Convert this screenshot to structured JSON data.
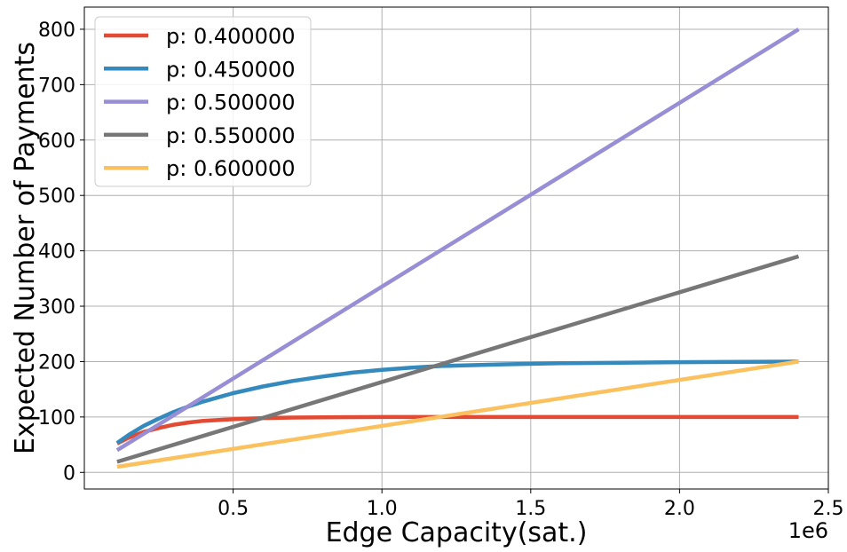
{
  "chart_data": {
    "type": "line",
    "xlabel": "Edge Capacity(sat.)",
    "ylabel": "Expected Number of Payments",
    "x_offset_label": "1e6",
    "xlim": [
      0.0,
      2.5
    ],
    "ylim": [
      -30,
      840
    ],
    "xticks": [
      0.5,
      1.0,
      1.5,
      2.0,
      2.5
    ],
    "xtick_labels": [
      "0.5",
      "1.0",
      "1.5",
      "2.0",
      "2.5"
    ],
    "yticks": [
      0,
      100,
      200,
      300,
      400,
      500,
      600,
      700,
      800
    ],
    "ytick_labels": [
      "0",
      "100",
      "200",
      "300",
      "400",
      "500",
      "600",
      "700",
      "800"
    ],
    "grid": true,
    "legend_position": "top-left",
    "series": [
      {
        "name": "p: 0.400000",
        "color": "#e24a33",
        "x": [
          0.11,
          0.15,
          0.2,
          0.25,
          0.3,
          0.35,
          0.4,
          0.5,
          0.6,
          0.7,
          0.8,
          1.0,
          1.2,
          1.5,
          2.0,
          2.4
        ],
        "y": [
          52,
          63,
          73,
          80,
          86,
          90,
          93,
          96,
          98,
          99,
          99.5,
          100,
          100,
          100,
          100,
          100
        ]
      },
      {
        "name": "p: 0.450000",
        "color": "#348abd",
        "x": [
          0.11,
          0.15,
          0.2,
          0.25,
          0.3,
          0.35,
          0.4,
          0.5,
          0.6,
          0.7,
          0.8,
          0.9,
          1.0,
          1.1,
          1.2,
          1.4,
          1.6,
          1.8,
          2.0,
          2.2,
          2.4
        ],
        "y": [
          53,
          68,
          84,
          97,
          109,
          119,
          128,
          143,
          155,
          165,
          173,
          180,
          185,
          189,
          192,
          195,
          197,
          198,
          199,
          199.5,
          200
        ]
      },
      {
        "name": "p: 0.500000",
        "color": "#988ed5",
        "x": [
          0.11,
          2.4
        ],
        "y": [
          40,
          800
        ]
      },
      {
        "name": "p: 0.550000",
        "color": "#777777",
        "x": [
          0.11,
          2.4
        ],
        "y": [
          19,
          390
        ]
      },
      {
        "name": "p: 0.600000",
        "color": "#fbc15e",
        "x": [
          0.11,
          2.4
        ],
        "y": [
          10,
          200
        ]
      }
    ]
  }
}
